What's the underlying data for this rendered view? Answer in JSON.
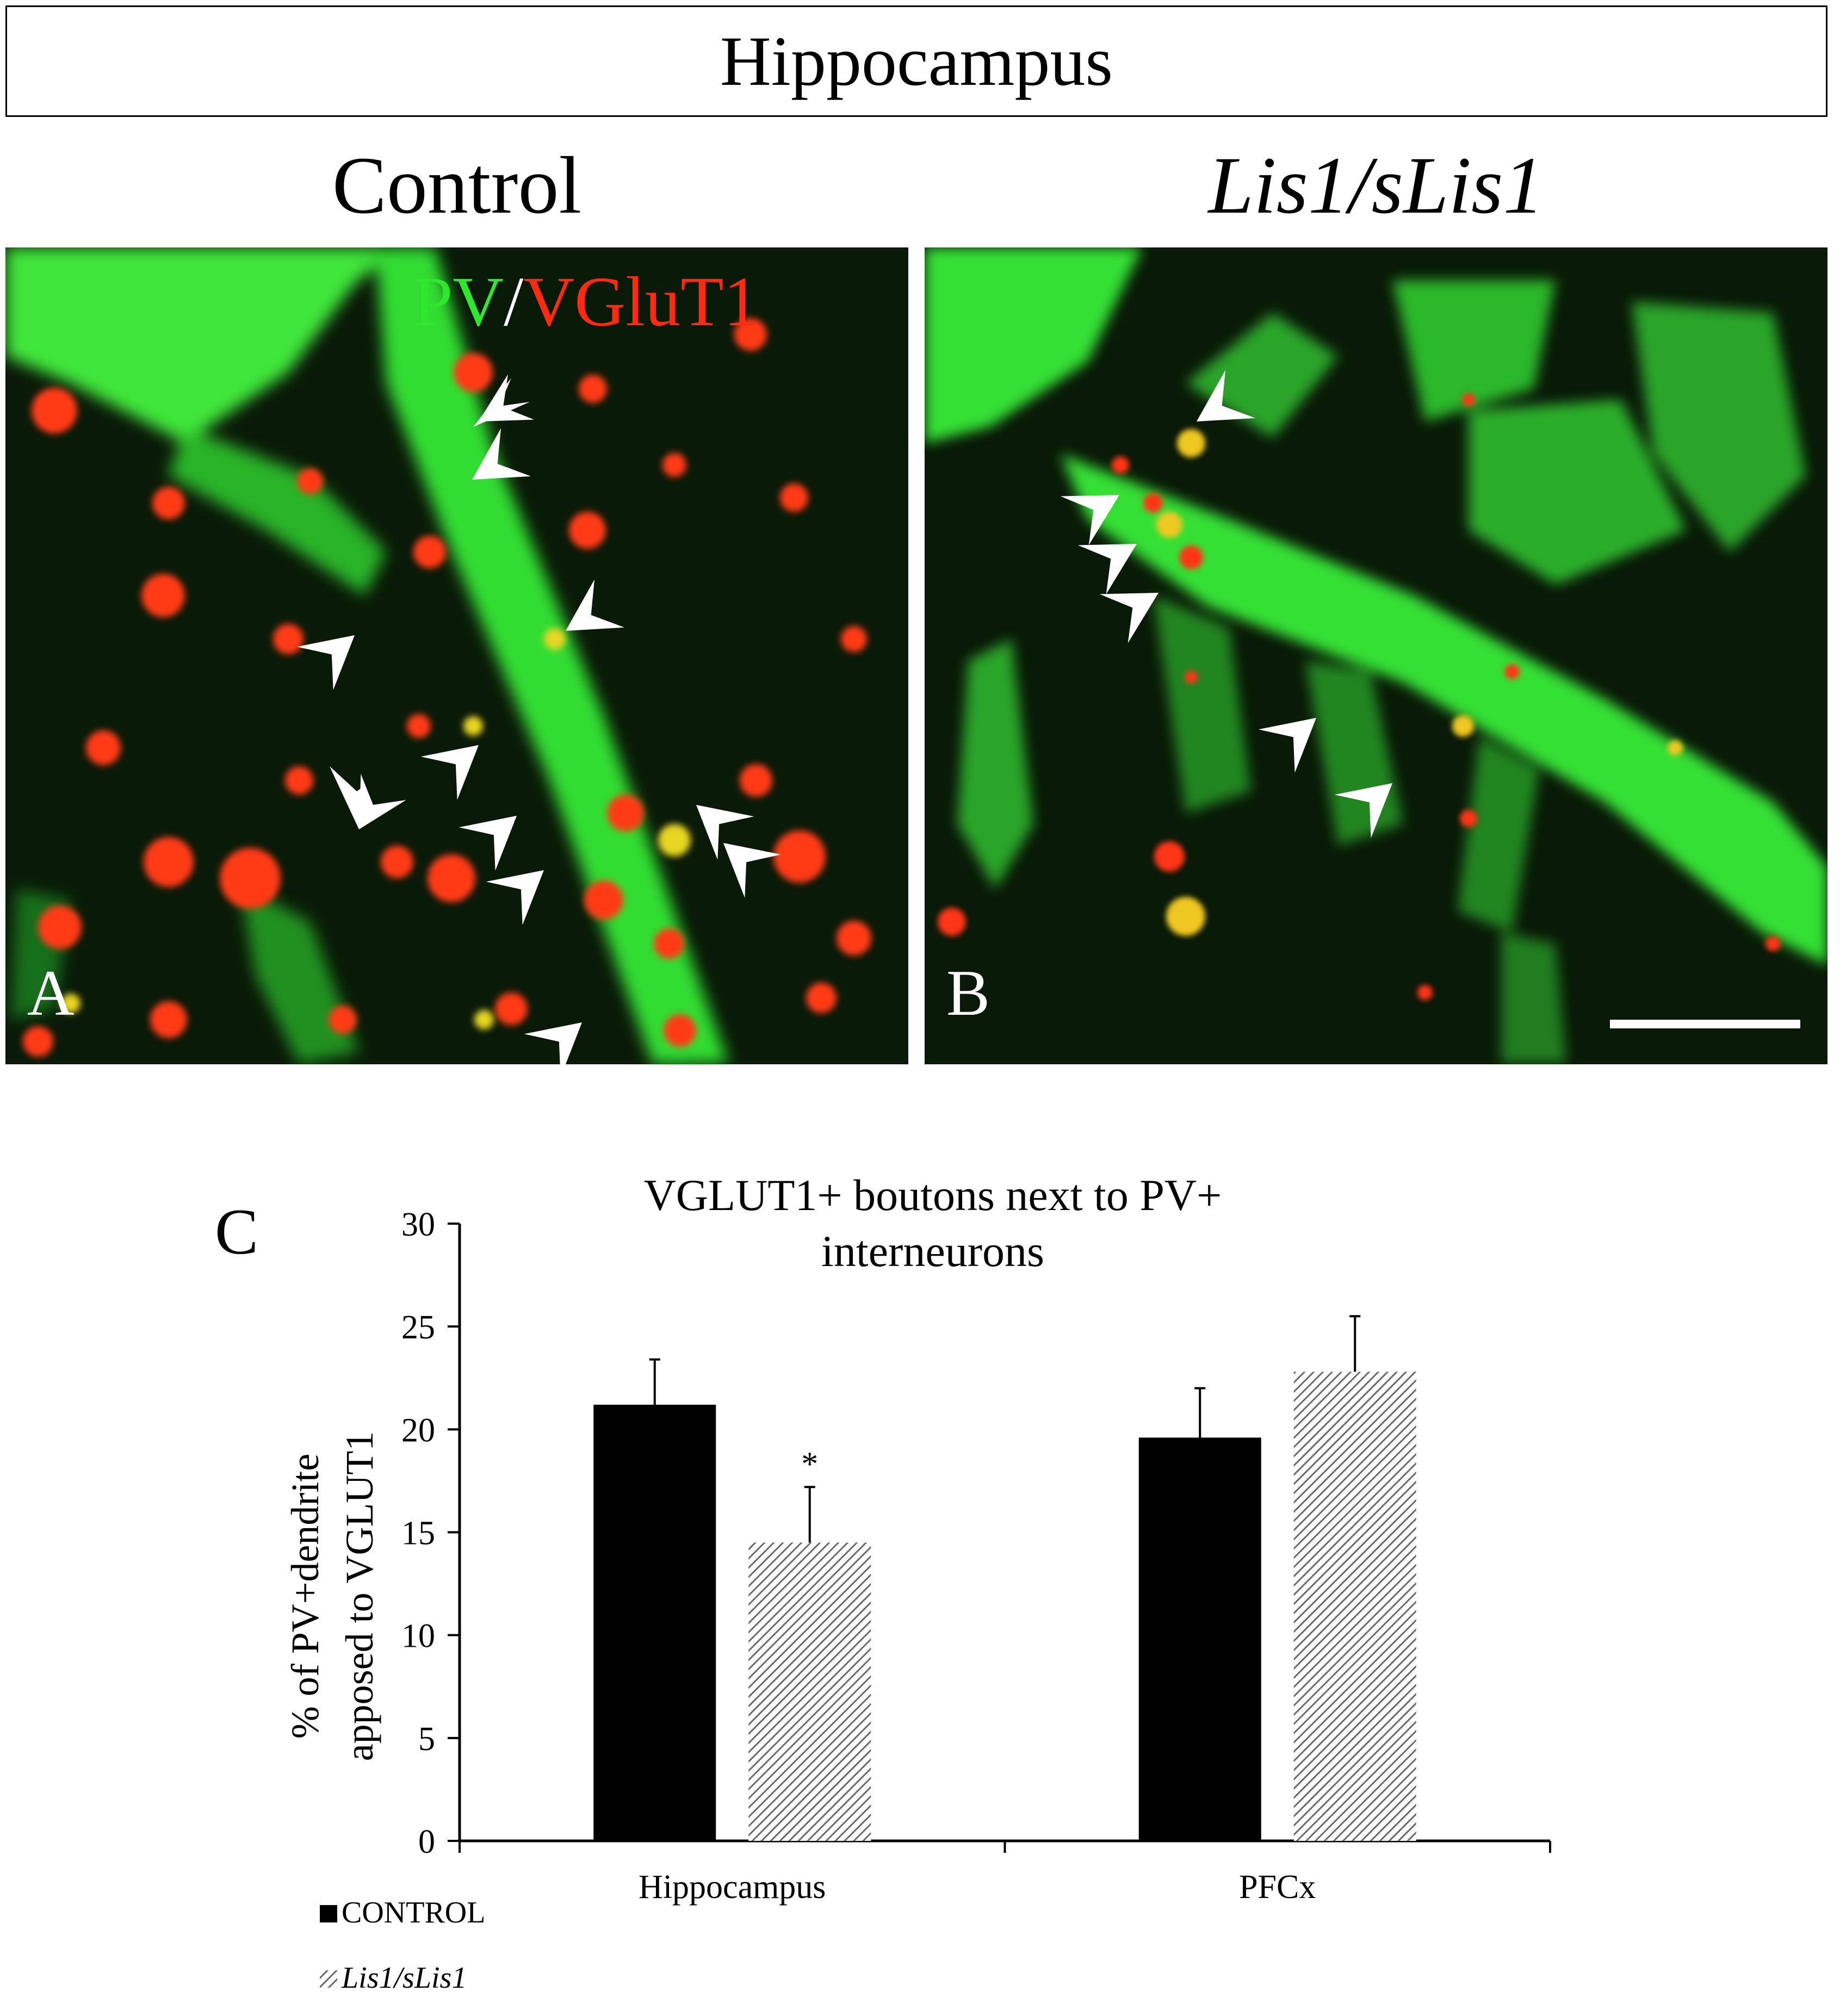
{
  "figure": {
    "title": "Hippocampus",
    "columns": [
      {
        "label": "Control",
        "italic": false
      },
      {
        "label": "Lis1/sLis1",
        "italic": true
      }
    ],
    "stain": {
      "pv": "PV",
      "sep": "/",
      "vglut": "VGluT1"
    },
    "panel_letters": [
      "A",
      "B",
      "C"
    ],
    "colors": {
      "pv_green": "#2ee82e",
      "vglut_red": "#ff2a10",
      "background": "#0a1a08"
    }
  },
  "chart_data": {
    "type": "bar",
    "title": "VGLUT1+ boutons next to PV+ interneurons",
    "title_lines": [
      "VGLUT1+ boutons next to PV+",
      "interneurons"
    ],
    "ylabel_lines": [
      "% of PV+dendrite",
      "apposed to VGLUT1"
    ],
    "xlabel": "",
    "categories": [
      "Hippocampus",
      "PFCx"
    ],
    "ylim": [
      0,
      30
    ],
    "yticks": [
      "0",
      "5",
      "10",
      "15",
      "20",
      "25",
      "30"
    ],
    "series": [
      {
        "name": "CONTROL",
        "values": [
          21.2,
          19.6
        ],
        "errors": [
          2.2,
          2.4
        ],
        "fill": "#000000"
      },
      {
        "name": "Lis1/sLis1",
        "values": [
          14.5,
          22.8
        ],
        "errors": [
          2.7,
          2.7
        ],
        "fill": "hatched"
      }
    ],
    "annotations": [
      {
        "category": "Hippocampus",
        "series": "Lis1/sLis1",
        "text": "*"
      }
    ],
    "legend_position": "bottom-left"
  }
}
